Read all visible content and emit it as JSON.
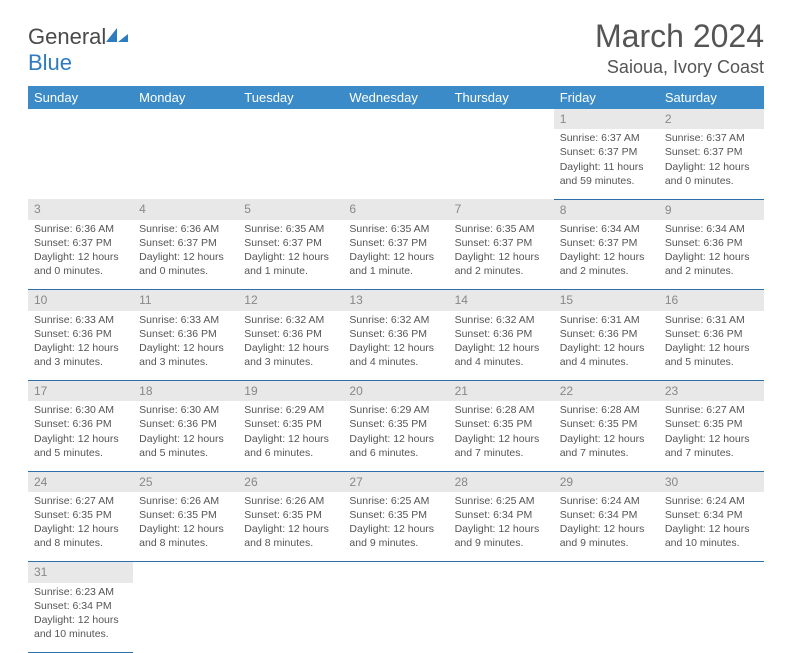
{
  "logo": {
    "text_a": "General",
    "text_b": "Blue"
  },
  "title": "March 2024",
  "subtitle": "Saioua, Ivory Coast",
  "header_bg": "#3b8bc8",
  "row_sep": "#2f6fa8",
  "daynum_bg": "#e8e8e8",
  "days": [
    "Sunday",
    "Monday",
    "Tuesday",
    "Wednesday",
    "Thursday",
    "Friday",
    "Saturday"
  ],
  "weeks": [
    [
      null,
      null,
      null,
      null,
      null,
      {
        "n": "1",
        "sr": "6:37 AM",
        "ss": "6:37 PM",
        "dl": "11 hours and 59 minutes."
      },
      {
        "n": "2",
        "sr": "6:37 AM",
        "ss": "6:37 PM",
        "dl": "12 hours and 0 minutes."
      }
    ],
    [
      {
        "n": "3",
        "sr": "6:36 AM",
        "ss": "6:37 PM",
        "dl": "12 hours and 0 minutes."
      },
      {
        "n": "4",
        "sr": "6:36 AM",
        "ss": "6:37 PM",
        "dl": "12 hours and 0 minutes."
      },
      {
        "n": "5",
        "sr": "6:35 AM",
        "ss": "6:37 PM",
        "dl": "12 hours and 1 minute."
      },
      {
        "n": "6",
        "sr": "6:35 AM",
        "ss": "6:37 PM",
        "dl": "12 hours and 1 minute."
      },
      {
        "n": "7",
        "sr": "6:35 AM",
        "ss": "6:37 PM",
        "dl": "12 hours and 2 minutes."
      },
      {
        "n": "8",
        "sr": "6:34 AM",
        "ss": "6:37 PM",
        "dl": "12 hours and 2 minutes."
      },
      {
        "n": "9",
        "sr": "6:34 AM",
        "ss": "6:36 PM",
        "dl": "12 hours and 2 minutes."
      }
    ],
    [
      {
        "n": "10",
        "sr": "6:33 AM",
        "ss": "6:36 PM",
        "dl": "12 hours and 3 minutes."
      },
      {
        "n": "11",
        "sr": "6:33 AM",
        "ss": "6:36 PM",
        "dl": "12 hours and 3 minutes."
      },
      {
        "n": "12",
        "sr": "6:32 AM",
        "ss": "6:36 PM",
        "dl": "12 hours and 3 minutes."
      },
      {
        "n": "13",
        "sr": "6:32 AM",
        "ss": "6:36 PM",
        "dl": "12 hours and 4 minutes."
      },
      {
        "n": "14",
        "sr": "6:32 AM",
        "ss": "6:36 PM",
        "dl": "12 hours and 4 minutes."
      },
      {
        "n": "15",
        "sr": "6:31 AM",
        "ss": "6:36 PM",
        "dl": "12 hours and 4 minutes."
      },
      {
        "n": "16",
        "sr": "6:31 AM",
        "ss": "6:36 PM",
        "dl": "12 hours and 5 minutes."
      }
    ],
    [
      {
        "n": "17",
        "sr": "6:30 AM",
        "ss": "6:36 PM",
        "dl": "12 hours and 5 minutes."
      },
      {
        "n": "18",
        "sr": "6:30 AM",
        "ss": "6:36 PM",
        "dl": "12 hours and 5 minutes."
      },
      {
        "n": "19",
        "sr": "6:29 AM",
        "ss": "6:35 PM",
        "dl": "12 hours and 6 minutes."
      },
      {
        "n": "20",
        "sr": "6:29 AM",
        "ss": "6:35 PM",
        "dl": "12 hours and 6 minutes."
      },
      {
        "n": "21",
        "sr": "6:28 AM",
        "ss": "6:35 PM",
        "dl": "12 hours and 7 minutes."
      },
      {
        "n": "22",
        "sr": "6:28 AM",
        "ss": "6:35 PM",
        "dl": "12 hours and 7 minutes."
      },
      {
        "n": "23",
        "sr": "6:27 AM",
        "ss": "6:35 PM",
        "dl": "12 hours and 7 minutes."
      }
    ],
    [
      {
        "n": "24",
        "sr": "6:27 AM",
        "ss": "6:35 PM",
        "dl": "12 hours and 8 minutes."
      },
      {
        "n": "25",
        "sr": "6:26 AM",
        "ss": "6:35 PM",
        "dl": "12 hours and 8 minutes."
      },
      {
        "n": "26",
        "sr": "6:26 AM",
        "ss": "6:35 PM",
        "dl": "12 hours and 8 minutes."
      },
      {
        "n": "27",
        "sr": "6:25 AM",
        "ss": "6:35 PM",
        "dl": "12 hours and 9 minutes."
      },
      {
        "n": "28",
        "sr": "6:25 AM",
        "ss": "6:34 PM",
        "dl": "12 hours and 9 minutes."
      },
      {
        "n": "29",
        "sr": "6:24 AM",
        "ss": "6:34 PM",
        "dl": "12 hours and 9 minutes."
      },
      {
        "n": "30",
        "sr": "6:24 AM",
        "ss": "6:34 PM",
        "dl": "12 hours and 10 minutes."
      }
    ],
    [
      {
        "n": "31",
        "sr": "6:23 AM",
        "ss": "6:34 PM",
        "dl": "12 hours and 10 minutes."
      },
      null,
      null,
      null,
      null,
      null,
      null
    ]
  ],
  "labels": {
    "sunrise": "Sunrise:",
    "sunset": "Sunset:",
    "daylight": "Daylight:"
  }
}
